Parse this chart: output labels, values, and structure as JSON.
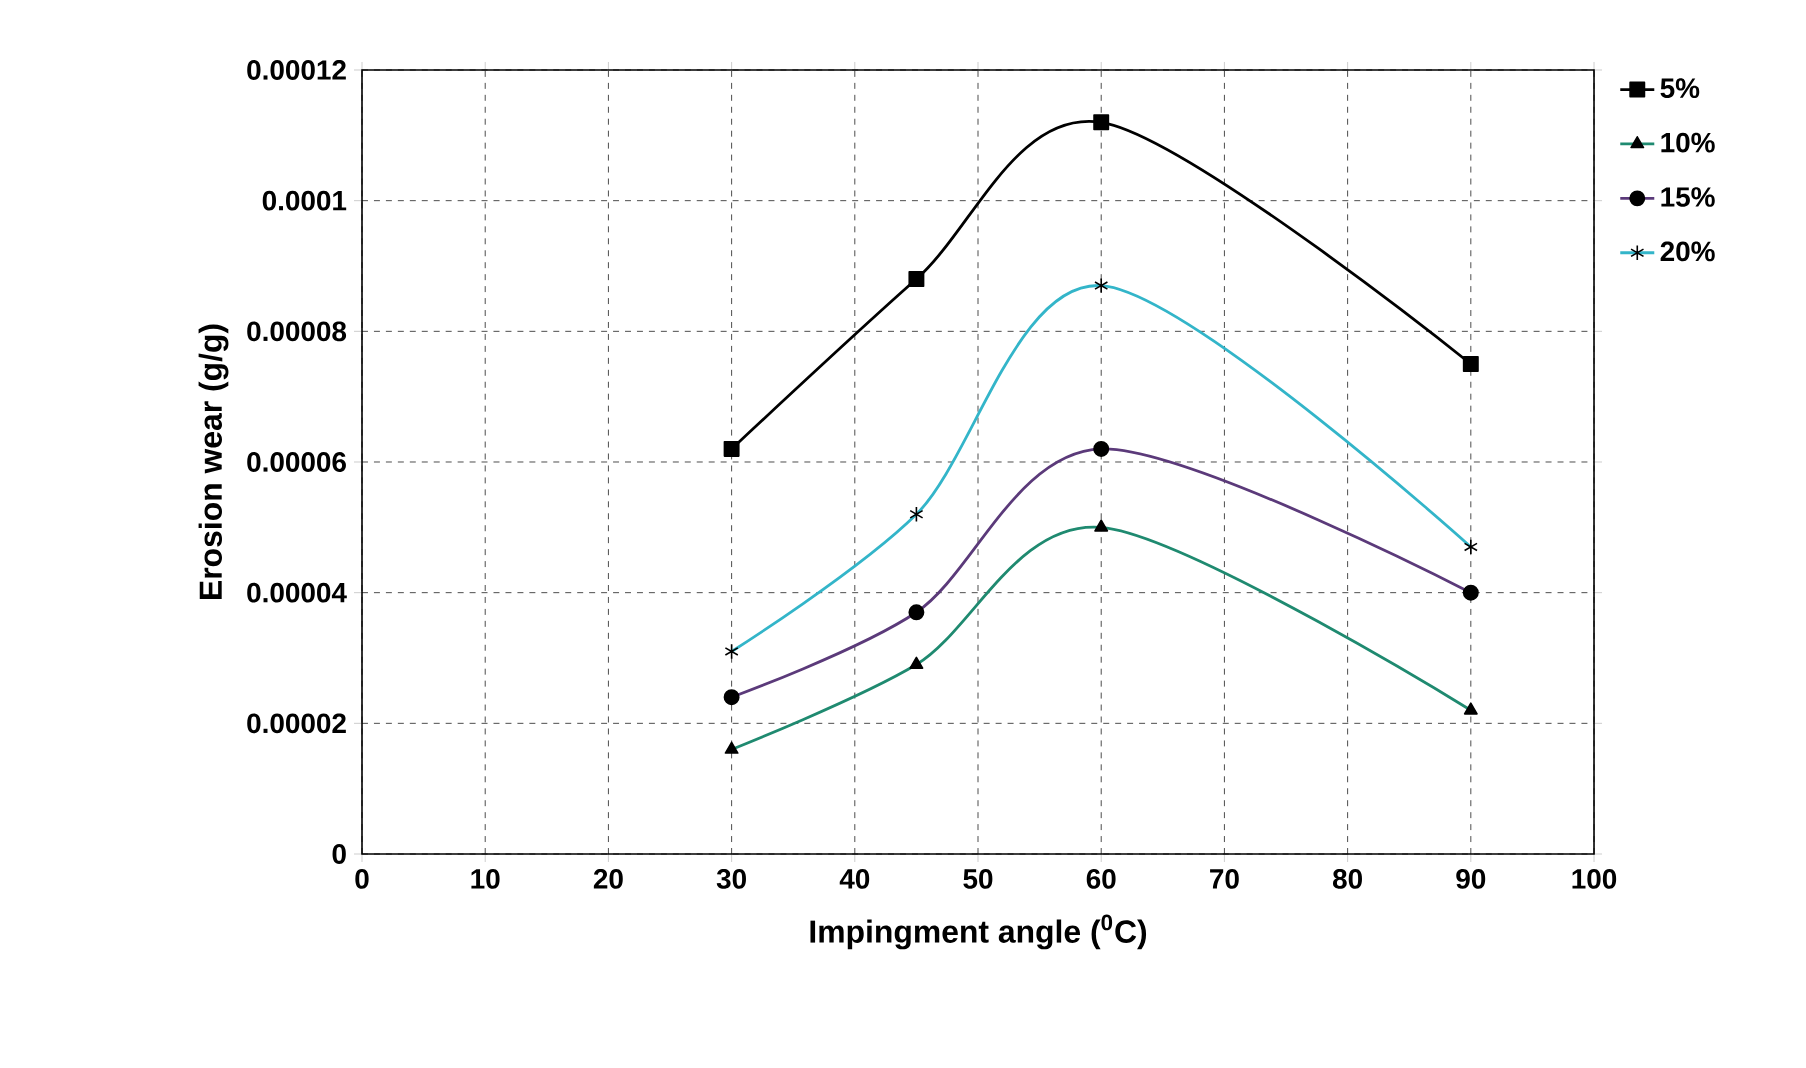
{
  "chart_data": {
    "type": "line",
    "xlabel": "Impingment angle ($^{0}$C)",
    "ylabel": "Erosion wear (g/g)",
    "x": [
      30,
      45,
      60,
      90
    ],
    "series": [
      {
        "name": "5%",
        "color": "#000000",
        "marker": "square",
        "values": [
          6.2e-05,
          8.8e-05,
          0.000112,
          7.5e-05
        ]
      },
      {
        "name": "10%",
        "color": "#1f8a70",
        "marker": "triangle",
        "values": [
          1.6e-05,
          2.9e-05,
          5e-05,
          2.2e-05
        ]
      },
      {
        "name": "15%",
        "color": "#5b3a7a",
        "marker": "circle",
        "values": [
          2.4e-05,
          3.7e-05,
          6.2e-05,
          4e-05
        ]
      },
      {
        "name": "20%",
        "color": "#33b5c9",
        "marker": "cross",
        "values": [
          3.1e-05,
          5.2e-05,
          8.7e-05,
          4.7e-05
        ]
      }
    ],
    "xlim": [
      0,
      100
    ],
    "xticks": [
      0,
      10,
      20,
      30,
      40,
      50,
      60,
      70,
      80,
      90,
      100
    ],
    "ylim": [
      0,
      0.00012
    ],
    "yticks": [
      {
        "value": 0,
        "label": "0"
      },
      {
        "value": 2e-05,
        "label": "0.00002"
      },
      {
        "value": 4e-05,
        "label": "0.00004"
      },
      {
        "value": 6e-05,
        "label": "0.00006"
      },
      {
        "value": 8e-05,
        "label": "0.00008"
      },
      {
        "value": 0.0001,
        "label": "0.0001"
      },
      {
        "value": 0.00012,
        "label": "0.00012"
      }
    ],
    "grid": true,
    "legend": "top right",
    "line_style": "solid"
  }
}
